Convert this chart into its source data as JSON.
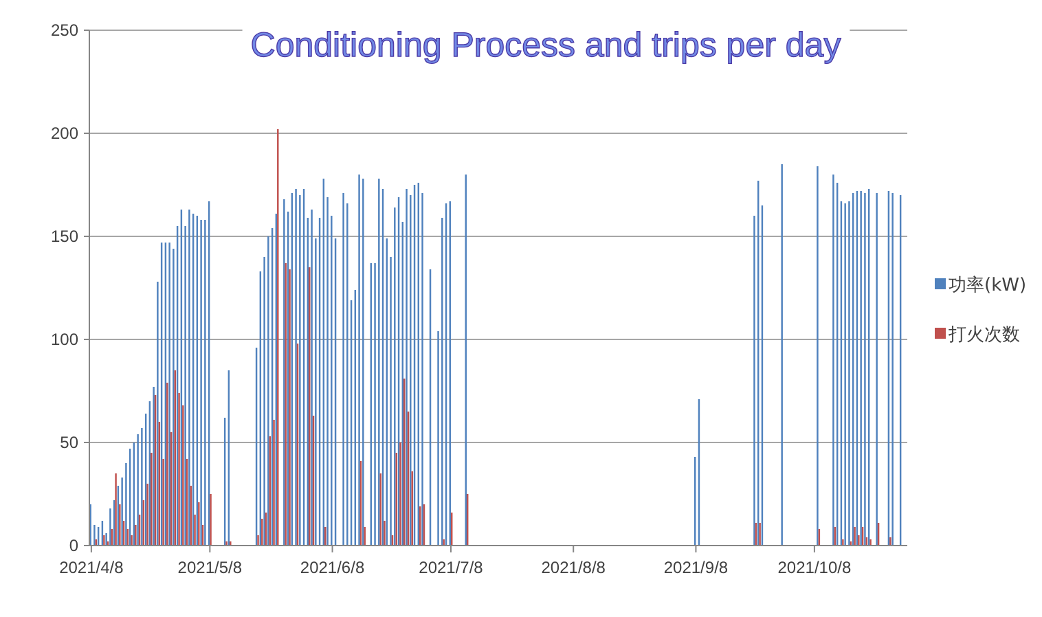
{
  "chart_data": {
    "type": "bar",
    "title": "Conditioning Process and trips per day",
    "x": [
      "2021-04-08",
      "2021-04-09",
      "2021-04-10",
      "2021-04-11",
      "2021-04-12",
      "2021-04-13",
      "2021-04-14",
      "2021-04-15",
      "2021-04-16",
      "2021-04-17",
      "2021-04-18",
      "2021-04-19",
      "2021-04-20",
      "2021-04-21",
      "2021-04-22",
      "2021-04-23",
      "2021-04-24",
      "2021-04-25",
      "2021-04-26",
      "2021-04-27",
      "2021-04-28",
      "2021-04-29",
      "2021-04-30",
      "2021-05-01",
      "2021-05-02",
      "2021-05-03",
      "2021-05-04",
      "2021-05-05",
      "2021-05-06",
      "2021-05-07",
      "2021-05-08",
      "2021-05-12",
      "2021-05-13",
      "2021-05-20",
      "2021-05-21",
      "2021-05-22",
      "2021-05-23",
      "2021-05-24",
      "2021-05-25",
      "2021-05-27",
      "2021-05-28",
      "2021-05-29",
      "2021-05-30",
      "2021-05-31",
      "2021-06-01",
      "2021-06-02",
      "2021-06-03",
      "2021-06-04",
      "2021-06-05",
      "2021-06-06",
      "2021-06-07",
      "2021-06-08",
      "2021-06-09",
      "2021-06-11",
      "2021-06-12",
      "2021-06-13",
      "2021-06-14",
      "2021-06-15",
      "2021-06-16",
      "2021-06-18",
      "2021-06-19",
      "2021-06-20",
      "2021-06-21",
      "2021-06-22",
      "2021-06-23",
      "2021-06-24",
      "2021-06-25",
      "2021-06-26",
      "2021-06-27",
      "2021-06-28",
      "2021-06-29",
      "2021-06-30",
      "2021-07-01",
      "2021-07-03",
      "2021-07-05",
      "2021-07-06",
      "2021-07-07",
      "2021-07-08",
      "2021-07-12",
      "2021-09-08",
      "2021-09-09",
      "2021-09-23",
      "2021-09-24",
      "2021-09-25",
      "2021-09-30",
      "2021-10-09",
      "2021-10-13",
      "2021-10-14",
      "2021-10-15",
      "2021-10-16",
      "2021-10-17",
      "2021-10-18",
      "2021-10-19",
      "2021-10-20",
      "2021-10-21",
      "2021-10-22",
      "2021-10-24",
      "2021-10-27",
      "2021-10-28",
      "2021-10-30"
    ],
    "series": [
      {
        "name": "功率(kW)",
        "color": "#4f81bd",
        "values": [
          20,
          10,
          9,
          12,
          6,
          18,
          22,
          29,
          33,
          40,
          47,
          50,
          54,
          57,
          64,
          70,
          77,
          128,
          147,
          147,
          147,
          144,
          155,
          163,
          155,
          163,
          161,
          160,
          158,
          158,
          167,
          62,
          85,
          96,
          133,
          140,
          150,
          154,
          161,
          168,
          162,
          171,
          173,
          170,
          173,
          159,
          163,
          149,
          159,
          178,
          169,
          160,
          149,
          171,
          166,
          119,
          124,
          180,
          178,
          137,
          137,
          178,
          173,
          149,
          140,
          164,
          169,
          157,
          173,
          170,
          175,
          176,
          171,
          134,
          104,
          159,
          166,
          167,
          180,
          43,
          71,
          160,
          177,
          165,
          185,
          184,
          180,
          176,
          167,
          166,
          167,
          171,
          172,
          172,
          171,
          173,
          171,
          172,
          171,
          170
        ]
      },
      {
        "name": "打火次数",
        "color": "#c0504d",
        "values": [
          null,
          3,
          null,
          5,
          2,
          8,
          35,
          20,
          12,
          8,
          5,
          10,
          15,
          22,
          30,
          45,
          73,
          60,
          42,
          79,
          55,
          85,
          74,
          68,
          42,
          29,
          15,
          21,
          10,
          null,
          25,
          2,
          2,
          5,
          13,
          16,
          53,
          61,
          202,
          137,
          134,
          null,
          98,
          null,
          null,
          135,
          63,
          null,
          null,
          9,
          null,
          null,
          null,
          null,
          null,
          null,
          null,
          41,
          9,
          null,
          null,
          35,
          12,
          null,
          5,
          45,
          50,
          81,
          65,
          36,
          null,
          19,
          20,
          null,
          null,
          3,
          null,
          16,
          25,
          null,
          null,
          11,
          11,
          null,
          null,
          8,
          9,
          null,
          3,
          null,
          2,
          9,
          5,
          9,
          4,
          3,
          11,
          4,
          null,
          null
        ]
      }
    ],
    "xlim": [
      "2021-04-07T12:00",
      "2021-10-31T12:00"
    ],
    "xticks": [
      {
        "value": "2021-04-08",
        "label": "2021/4/8"
      },
      {
        "value": "2021-05-08",
        "label": "2021/5/8"
      },
      {
        "value": "2021-06-08",
        "label": "2021/6/8"
      },
      {
        "value": "2021-07-08",
        "label": "2021/7/8"
      },
      {
        "value": "2021-08-08",
        "label": "2021/8/8"
      },
      {
        "value": "2021-09-08",
        "label": "2021/9/8"
      },
      {
        "value": "2021-10-08",
        "label": "2021/10/8"
      }
    ],
    "ylim": [
      0,
      250
    ],
    "yticks": [
      0,
      50,
      100,
      150,
      200,
      250
    ],
    "grid": "y",
    "legend": "right"
  }
}
